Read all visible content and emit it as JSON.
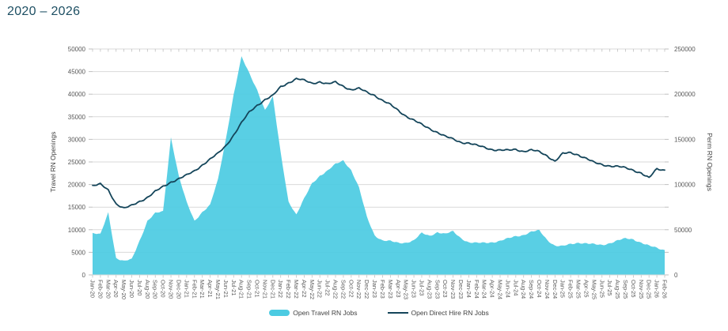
{
  "title": "2020 – 2026",
  "legend": {
    "travel_label": "Open Travel RN Jobs",
    "direct_hire_label": "Open Direct Hire RN Jobs"
  },
  "colors": {
    "area": "#4ccbe2",
    "line": "#14455a",
    "grid": "#d9d9d9",
    "tick": "#bfbfbf",
    "axis_text": "#595959",
    "title_text": "#1d4f63"
  },
  "chart_data": {
    "type": "area+line",
    "title": "2020 – 2026",
    "grid": true,
    "legend_position": "bottom",
    "x": [
      "Jan-20",
      "Feb-20",
      "Mar-20",
      "Apr-20",
      "May-20",
      "Jun-20",
      "Jul-20",
      "Aug-20",
      "Sep-20",
      "Oct-20",
      "Nov-20",
      "Dec-20",
      "Jan-21",
      "Feb-21",
      "Mar-21",
      "Apr-21",
      "May-21",
      "Jun-21",
      "Jul-21",
      "Aug-21",
      "Sep-21",
      "Oct-21",
      "Nov-21",
      "Dec-21",
      "Jan-22",
      "Feb-22",
      "Mar-22",
      "Apr-22",
      "May-22",
      "Jun-22",
      "Jul-22",
      "Aug-22",
      "Sep-22",
      "Oct-22",
      "Nov-22",
      "Dec-22",
      "Jan-23",
      "Feb-23",
      "Mar-23",
      "Apr-23",
      "May-23",
      "Jun-23",
      "Jul-23",
      "Aug-23",
      "Sep-23",
      "Oct-23",
      "Nov-23",
      "Dec-23",
      "Jan-24",
      "Feb-24",
      "Mar-24",
      "Apr-24",
      "May-24",
      "Jun-24",
      "Jul-24",
      "Aug-24",
      "Sep-24",
      "Oct-24",
      "Nov-24",
      "Dec-24",
      "Jan-25",
      "Feb-25",
      "Mar-25",
      "Apr-25",
      "May-25",
      "Jun-25",
      "Jul-25",
      "Aug-25",
      "Sep-25",
      "Oct-25",
      "Nov-25",
      "Dec-25",
      "Jan-26",
      "Feb-26"
    ],
    "series": [
      {
        "name": "Open Travel RN Jobs",
        "type": "area",
        "axis": "left",
        "color": "#4ccbe2",
        "values": [
          9200,
          8900,
          13800,
          3800,
          3000,
          3400,
          7600,
          12000,
          13600,
          14000,
          30500,
          21900,
          16000,
          11900,
          14000,
          15500,
          21000,
          30000,
          40000,
          48200,
          44500,
          41000,
          36500,
          39300,
          27000,
          16300,
          13300,
          16800,
          20300,
          22000,
          23000,
          24500,
          25400,
          23200,
          19200,
          12800,
          8800,
          7600,
          7400,
          7100,
          7200,
          7600,
          9200,
          8700,
          9500,
          9000,
          9600,
          8200,
          7200,
          7000,
          7100,
          7300,
          7500,
          8000,
          8600,
          8900,
          9500,
          9800,
          7800,
          6500,
          6300,
          6800,
          7200,
          7000,
          6700,
          6600,
          7100,
          7600,
          8000,
          7900,
          7200,
          6400,
          5900,
          5500
        ]
      },
      {
        "name": "Open Direct Hire RN Jobs",
        "type": "line",
        "axis": "right",
        "color": "#14455a",
        "values": [
          98500,
          100000,
          94000,
          79000,
          73500,
          76500,
          81500,
          86000,
          92000,
          97500,
          103000,
          106500,
          110000,
          115000,
          122000,
          128000,
          134000,
          143000,
          155000,
          168000,
          180000,
          188000,
          194000,
          198000,
          208000,
          213000,
          217000,
          215000,
          212000,
          214000,
          211000,
          213000,
          209000,
          205000,
          206000,
          202000,
          199000,
          193000,
          188000,
          182000,
          176000,
          171000,
          166000,
          162000,
          158000,
          153000,
          150000,
          147000,
          146000,
          143000,
          141000,
          139000,
          138000,
          137500,
          139000,
          137000,
          138000,
          136000,
          132000,
          126000,
          134000,
          135000,
          133000,
          129000,
          124000,
          122000,
          121000,
          120000,
          118000,
          116000,
          113000,
          107000,
          117000,
          116000
        ]
      }
    ],
    "left_axis": {
      "label": "Travel RN Openings",
      "min": 0,
      "max": 50000,
      "step": 5000,
      "ticks": [
        "0",
        "5000",
        "10000",
        "15000",
        "20000",
        "25000",
        "30000",
        "35000",
        "40000",
        "45000",
        "50000"
      ]
    },
    "right_axis": {
      "label": "Perm RN Openings",
      "min": 0,
      "max": 250000,
      "step": 50000,
      "ticks": [
        "0",
        "50000",
        "100000",
        "150000",
        "200000",
        "250000"
      ]
    }
  }
}
